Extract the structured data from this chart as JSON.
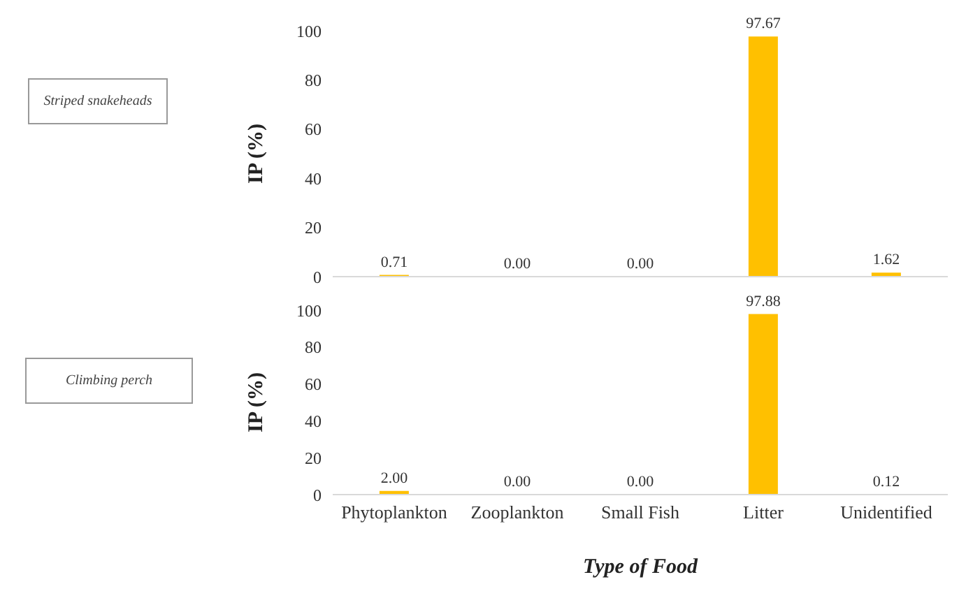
{
  "chart_data": [
    {
      "type": "bar",
      "categories": [
        null,
        null,
        null,
        null,
        null
      ],
      "values": [
        0.71,
        0.0,
        0.0,
        97.67,
        1.62
      ],
      "value_labels": [
        "0.71",
        "0.00",
        "0.00",
        "97.67",
        "1.62"
      ],
      "color": "#ffc000",
      "ylabel": "IP (%)",
      "ylim": [
        0,
        100
      ],
      "yticks": [
        0,
        20,
        40,
        60,
        80,
        100
      ],
      "tick_labels": "y",
      "annotations": [
        "Striped snakeheads"
      ]
    },
    {
      "type": "bar",
      "categories": [
        "Phytoplankton",
        "Zooplankton",
        "Small Fish",
        "Litter",
        "Unidentified"
      ],
      "values": [
        2.0,
        0.0,
        0.0,
        97.88,
        0.12
      ],
      "value_labels": [
        "2.00",
        "0.00",
        "0.00",
        "97.88",
        "0.12"
      ],
      "color": "#ffc000",
      "ylabel": "IP (%)",
      "xlabel": "Type of Food",
      "ylim": [
        0,
        100
      ],
      "yticks": [
        0,
        20,
        40,
        60,
        80,
        100
      ],
      "annotations": [
        "Climbing perch"
      ]
    }
  ]
}
